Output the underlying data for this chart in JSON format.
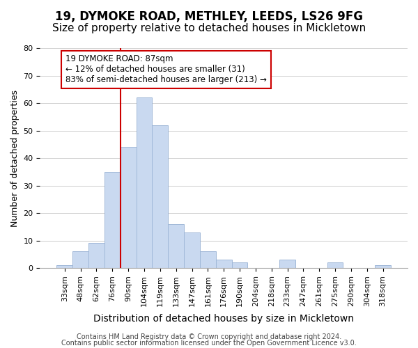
{
  "title": "19, DYMOKE ROAD, METHLEY, LEEDS, LS26 9FG",
  "subtitle": "Size of property relative to detached houses in Mickletown",
  "xlabel": "Distribution of detached houses by size in Mickletown",
  "ylabel": "Number of detached properties",
  "bar_labels": [
    "33sqm",
    "48sqm",
    "62sqm",
    "76sqm",
    "90sqm",
    "104sqm",
    "119sqm",
    "133sqm",
    "147sqm",
    "161sqm",
    "176sqm",
    "190sqm",
    "204sqm",
    "218sqm",
    "233sqm",
    "247sqm",
    "261sqm",
    "275sqm",
    "290sqm",
    "304sqm",
    "318sqm"
  ],
  "bar_values": [
    1,
    6,
    9,
    35,
    44,
    62,
    52,
    16,
    13,
    6,
    3,
    2,
    0,
    0,
    3,
    0,
    0,
    2,
    0,
    0,
    1
  ],
  "bar_color": "#c9d9f0",
  "bar_edge_color": "#a0b8d8",
  "vline_x_index": 4,
  "vline_color": "#cc0000",
  "ylim": [
    0,
    80
  ],
  "yticks": [
    0,
    10,
    20,
    30,
    40,
    50,
    60,
    70,
    80
  ],
  "annotation_title": "19 DYMOKE ROAD: 87sqm",
  "annotation_line1": "← 12% of detached houses are smaller (31)",
  "annotation_line2": "83% of semi-detached houses are larger (213) →",
  "annotation_box_color": "#ffffff",
  "annotation_box_edge": "#cc0000",
  "footer1": "Contains HM Land Registry data © Crown copyright and database right 2024.",
  "footer2": "Contains public sector information licensed under the Open Government Licence v3.0.",
  "title_fontsize": 12,
  "subtitle_fontsize": 11,
  "xlabel_fontsize": 10,
  "ylabel_fontsize": 9,
  "tick_fontsize": 8,
  "annotation_body_fontsize": 8.5,
  "footer_fontsize": 7
}
